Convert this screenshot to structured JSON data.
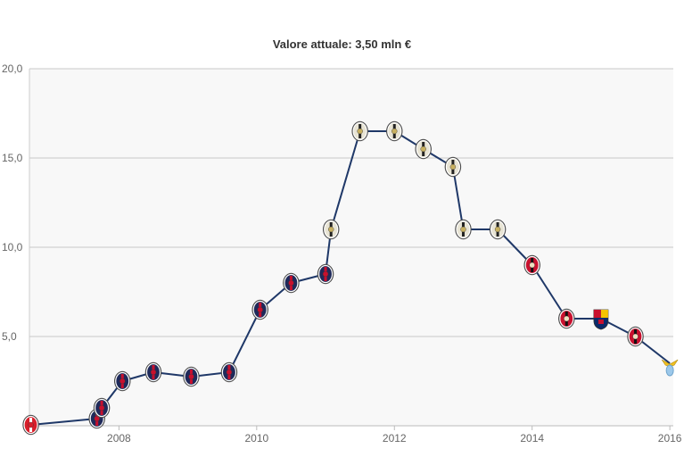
{
  "chart_data": {
    "type": "line",
    "title": "Valore attuale: 3,50 mln €",
    "xlabel": "",
    "ylabel": "",
    "xlim": [
      2006.7,
      2016.05
    ],
    "ylim": [
      0,
      20
    ],
    "x_ticks": [
      {
        "value": 2008,
        "label": "2008"
      },
      {
        "value": 2010,
        "label": "2010"
      },
      {
        "value": 2012,
        "label": "2012"
      },
      {
        "value": 2014,
        "label": "2014"
      },
      {
        "value": 2016,
        "label": "2016"
      }
    ],
    "y_ticks": [
      {
        "value": 5,
        "label": "5,0"
      },
      {
        "value": 10,
        "label": "10,0"
      },
      {
        "value": 15,
        "label": "15,0"
      },
      {
        "value": 20,
        "label": "20,0"
      }
    ],
    "grid": true,
    "line_color": "#1f3868",
    "background_color": "#f8f8f8",
    "grid_color": "#c8c8c8",
    "points": [
      {
        "x": 2006.72,
        "y": 0.05,
        "club": "red-white-crest"
      },
      {
        "x": 2007.68,
        "y": 0.4,
        "club": "blue-red-crest"
      },
      {
        "x": 2007.75,
        "y": 1.0,
        "club": "blue-red-crest"
      },
      {
        "x": 2008.05,
        "y": 2.5,
        "club": "blue-red-crest"
      },
      {
        "x": 2008.5,
        "y": 3.0,
        "club": "blue-red-crest"
      },
      {
        "x": 2009.05,
        "y": 2.75,
        "club": "blue-red-crest"
      },
      {
        "x": 2009.6,
        "y": 3.0,
        "club": "blue-red-crest"
      },
      {
        "x": 2010.05,
        "y": 6.5,
        "club": "blue-red-crest"
      },
      {
        "x": 2010.5,
        "y": 8.0,
        "club": "blue-red-crest"
      },
      {
        "x": 2011.0,
        "y": 8.5,
        "club": "blue-red-crest"
      },
      {
        "x": 2011.08,
        "y": 11.0,
        "club": "black-white-crest"
      },
      {
        "x": 2011.5,
        "y": 16.5,
        "club": "black-white-crest"
      },
      {
        "x": 2012.0,
        "y": 16.5,
        "club": "black-white-crest"
      },
      {
        "x": 2012.42,
        "y": 15.5,
        "club": "black-white-crest"
      },
      {
        "x": 2012.85,
        "y": 14.5,
        "club": "black-white-crest"
      },
      {
        "x": 2013.0,
        "y": 11.0,
        "club": "black-white-crest"
      },
      {
        "x": 2013.5,
        "y": 11.0,
        "club": "black-white-crest"
      },
      {
        "x": 2014.0,
        "y": 9.0,
        "club": "red-black-crest"
      },
      {
        "x": 2014.5,
        "y": 6.0,
        "club": "red-black-crest"
      },
      {
        "x": 2015.0,
        "y": 6.0,
        "club": "red-blue-crest"
      },
      {
        "x": 2015.5,
        "y": 5.0,
        "club": "red-black-crest"
      },
      {
        "x": 2016.0,
        "y": 3.5,
        "club": "eagle-crest"
      }
    ]
  }
}
